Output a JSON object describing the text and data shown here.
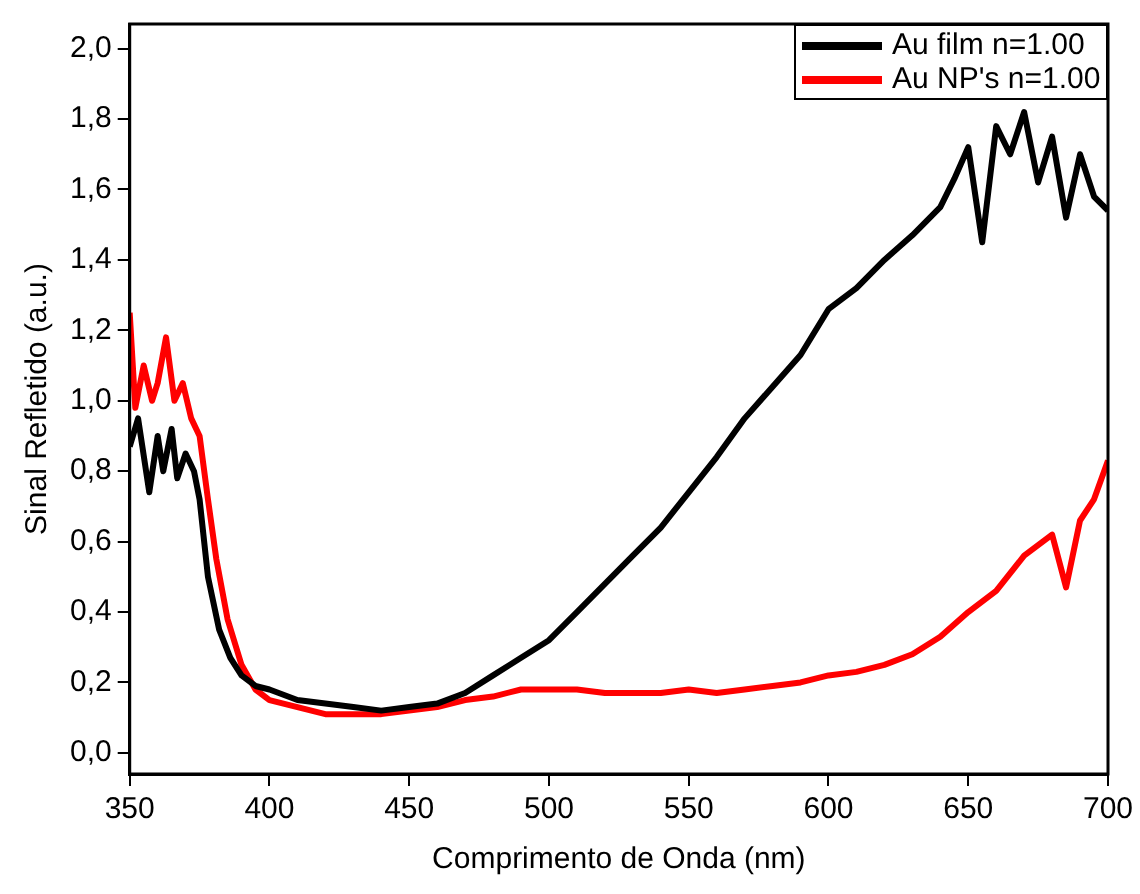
{
  "chart_data": {
    "type": "line",
    "xlabel": "Comprimento de Onda (nm)",
    "ylabel": "Sinal Refletido (a.u.)",
    "xlim": [
      350,
      700
    ],
    "xticks": [
      350,
      400,
      450,
      500,
      550,
      600,
      650,
      700
    ],
    "ylim": [
      -0.06,
      2.07
    ],
    "yticks": [
      {
        "value": 0,
        "label": "0,0"
      },
      {
        "value": 0.2,
        "label": "0,2"
      },
      {
        "value": 0.4,
        "label": "0,4"
      },
      {
        "value": 0.6,
        "label": "0,6"
      },
      {
        "value": 0.8,
        "label": "0,8"
      },
      {
        "value": 1,
        "label": "1,0"
      },
      {
        "value": 1.2,
        "label": "1,2"
      },
      {
        "value": 1.4,
        "label": "1,4"
      },
      {
        "value": 1.6,
        "label": "1,6"
      },
      {
        "value": 1.8,
        "label": "1,8"
      },
      {
        "value": 2,
        "label": "2,0"
      }
    ],
    "grid": false,
    "legend": "top right",
    "marker": "none",
    "line_style": "solid",
    "series": [
      {
        "name": "Au film n=1.00",
        "color": "#000000",
        "x": [
          350,
          353,
          357,
          360,
          362,
          365,
          367,
          370,
          373,
          375,
          378,
          382,
          386,
          390,
          395,
          400,
          410,
          420,
          430,
          440,
          450,
          460,
          470,
          480,
          490,
          500,
          510,
          520,
          530,
          540,
          550,
          560,
          570,
          580,
          590,
          600,
          610,
          620,
          630,
          640,
          645,
          650,
          655,
          660,
          665,
          670,
          675,
          680,
          685,
          690,
          695,
          700
        ],
        "values": [
          0.87,
          0.95,
          0.74,
          0.9,
          0.8,
          0.92,
          0.78,
          0.85,
          0.8,
          0.72,
          0.5,
          0.35,
          0.27,
          0.22,
          0.19,
          0.18,
          0.15,
          0.14,
          0.13,
          0.12,
          0.13,
          0.14,
          0.17,
          0.22,
          0.27,
          0.32,
          0.4,
          0.48,
          0.56,
          0.64,
          0.74,
          0.84,
          0.95,
          1.04,
          1.13,
          1.26,
          1.32,
          1.4,
          1.47,
          1.55,
          1.63,
          1.72,
          1.45,
          1.78,
          1.7,
          1.82,
          1.62,
          1.75,
          1.52,
          1.7,
          1.58,
          1.54
        ]
      },
      {
        "name": "Au NP's n=1.00",
        "color": "#ff0000",
        "x": [
          350,
          352,
          355,
          358,
          360,
          363,
          366,
          369,
          372,
          375,
          378,
          381,
          385,
          390,
          395,
          400,
          410,
          420,
          430,
          440,
          450,
          460,
          470,
          480,
          490,
          500,
          510,
          520,
          530,
          540,
          550,
          560,
          570,
          580,
          590,
          600,
          610,
          620,
          630,
          640,
          650,
          660,
          670,
          680,
          685,
          690,
          695,
          700
        ],
        "values": [
          1.25,
          0.98,
          1.1,
          1.0,
          1.05,
          1.18,
          1.0,
          1.05,
          0.95,
          0.9,
          0.72,
          0.55,
          0.38,
          0.25,
          0.18,
          0.15,
          0.13,
          0.11,
          0.11,
          0.11,
          0.12,
          0.13,
          0.15,
          0.16,
          0.18,
          0.18,
          0.18,
          0.17,
          0.17,
          0.17,
          0.18,
          0.17,
          0.18,
          0.19,
          0.2,
          0.22,
          0.23,
          0.25,
          0.28,
          0.33,
          0.4,
          0.46,
          0.56,
          0.62,
          0.47,
          0.66,
          0.72,
          0.83
        ]
      }
    ]
  }
}
